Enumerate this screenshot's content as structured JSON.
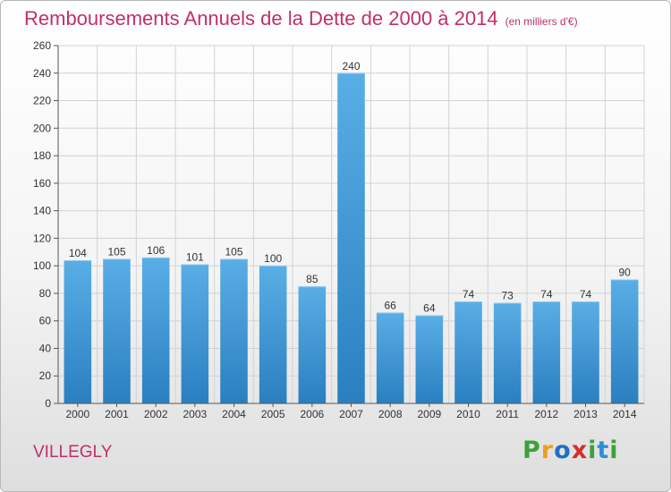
{
  "title": "Remboursements Annuels de la Dette de 2000 à 2014",
  "subtitle": "(en milliers d'€)",
  "commune": "VILLEGLY",
  "logo": {
    "letters": [
      "P",
      "r",
      "o",
      "x",
      "i",
      "t",
      "i"
    ],
    "colors": [
      "#3da13a",
      "#e8a21f",
      "#1f6fc4",
      "#cf2f2f",
      "#3da13a",
      "#2a8fd6",
      "#3da13a"
    ]
  },
  "colors": {
    "title": "#c0306a",
    "bar_light": "#5aaee6",
    "bar_dark": "#2a7fc0"
  },
  "chart_data": {
    "type": "bar",
    "categories": [
      "2000",
      "2001",
      "2002",
      "2003",
      "2004",
      "2005",
      "2006",
      "2007",
      "2008",
      "2009",
      "2010",
      "2011",
      "2012",
      "2013",
      "2014"
    ],
    "values": [
      104,
      105,
      106,
      101,
      105,
      100,
      85,
      240,
      66,
      64,
      74,
      73,
      74,
      74,
      90
    ],
    "ylim": [
      0,
      260
    ],
    "yticks": [
      0,
      20,
      40,
      60,
      80,
      100,
      120,
      140,
      160,
      180,
      200,
      220,
      240,
      260
    ],
    "grid": true,
    "data_labels": true
  }
}
